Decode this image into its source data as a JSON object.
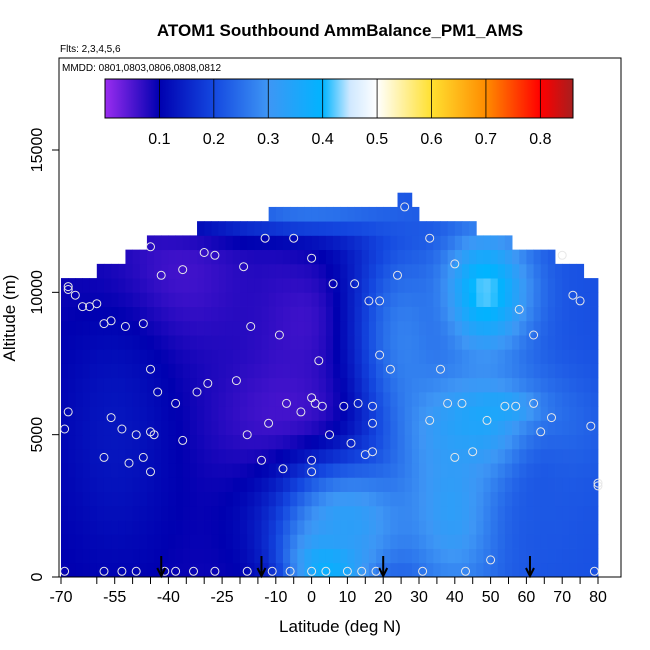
{
  "chart_data": {
    "type": "heatmap",
    "title": "ATOM1 Southbound AmmBalance_PM1_AMS",
    "subtitle_flights": "Flts: 2,3,4,5,6",
    "subtitle_dates": "MMDD: 0801,0803,0806,0808,0812",
    "xlabel": "Latitude (deg N)",
    "ylabel": "Altitude (m)",
    "xlim": [
      -70,
      82
    ],
    "ylim": [
      0,
      17500
    ],
    "x_ticks": [
      -70,
      -55,
      -40,
      -25,
      -10,
      0,
      10,
      20,
      30,
      40,
      50,
      60,
      70,
      80
    ],
    "x_tick_labels": [
      "-70",
      "-55",
      "-40",
      "-25",
      "-10",
      "0",
      "10",
      "20",
      "30",
      "40",
      "50",
      "60",
      "70",
      "80"
    ],
    "x_minor_ticks": [
      -60,
      -50,
      -45,
      -35,
      -30,
      -20,
      -15,
      -5,
      5,
      15,
      25,
      35,
      45,
      55,
      65,
      75
    ],
    "y_ticks": [
      0,
      5000,
      10000,
      15000
    ],
    "y_tick_labels": [
      "0",
      "5000",
      "10000",
      "15000"
    ],
    "colorbar": {
      "range": [
        0.0,
        0.86
      ],
      "ticks": [
        0.1,
        0.2,
        0.3,
        0.4,
        0.5,
        0.6,
        0.7,
        0.8
      ],
      "tick_labels": [
        "0.1",
        "0.2",
        "0.3",
        "0.4",
        "0.5",
        "0.6",
        "0.7",
        "0.8"
      ],
      "stops": [
        {
          "v": 0.0,
          "color": "#9a2cf0"
        },
        {
          "v": 0.1,
          "color": "#0000b0"
        },
        {
          "v": 0.2,
          "color": "#1448e0"
        },
        {
          "v": 0.3,
          "color": "#3e96f5"
        },
        {
          "v": 0.4,
          "color": "#00b4ff"
        },
        {
          "v": 0.45,
          "color": "#cfe8ff"
        },
        {
          "v": 0.5,
          "color": "#ffffff"
        },
        {
          "v": 0.6,
          "color": "#ffe030"
        },
        {
          "v": 0.7,
          "color": "#ff8c00"
        },
        {
          "v": 0.8,
          "color": "#ff0000"
        },
        {
          "v": 0.86,
          "color": "#a81e1e"
        }
      ]
    },
    "coverage": [
      {
        "y": [
          0,
          10500
        ],
        "x": [
          -69,
          79
        ]
      },
      {
        "y": [
          10500,
          11000
        ],
        "x": [
          -60,
          75
        ]
      },
      {
        "y": [
          11000,
          11500
        ],
        "x": [
          -52,
          68
        ]
      },
      {
        "y": [
          11500,
          12000
        ],
        "x": [
          -45,
          55
        ]
      },
      {
        "y": [
          12000,
          12500
        ],
        "x": [
          -32,
          45
        ]
      },
      {
        "y": [
          12500,
          13000
        ],
        "x": [
          -12,
          30
        ]
      },
      {
        "y": [
          13000,
          13500
        ],
        "x": [
          25,
          27
        ]
      }
    ],
    "field_features": [
      {
        "x": -40,
        "y": 10500,
        "v": 0.05,
        "sx": 14,
        "sy": 1800
      },
      {
        "x": -2,
        "y": 9000,
        "v": 0.06,
        "sx": 10,
        "sy": 1800
      },
      {
        "x": -5,
        "y": 5600,
        "v": 0.05,
        "sx": 16,
        "sy": 1500
      },
      {
        "x": -55,
        "y": 5000,
        "v": 0.13,
        "sx": 12,
        "sy": 3500
      },
      {
        "x": 48,
        "y": 10000,
        "v": 0.43,
        "sx": 9,
        "sy": 1500
      },
      {
        "x": 26,
        "y": 8500,
        "v": 0.27,
        "sx": 9,
        "sy": 2500
      },
      {
        "x": 55,
        "y": 5800,
        "v": 0.53,
        "sx": 5,
        "sy": 350
      },
      {
        "x": 50,
        "y": 5200,
        "v": 0.4,
        "sx": 14,
        "sy": 1300
      },
      {
        "x": 5,
        "y": 500,
        "v": 0.44,
        "sx": 8,
        "sy": 900
      },
      {
        "x": 10,
        "y": 2000,
        "v": 0.33,
        "sx": 14,
        "sy": 1500
      },
      {
        "x": 0,
        "y": 12900,
        "v": 0.26,
        "sx": 25,
        "sy": 600
      },
      {
        "x": 40,
        "y": 2500,
        "v": 0.33,
        "sx": 10,
        "sy": 2500
      },
      {
        "x": 65,
        "y": 3000,
        "v": 0.22,
        "sx": 10,
        "sy": 2500
      }
    ],
    "observations": [
      {
        "x": -69,
        "y": 200
      },
      {
        "x": -58,
        "y": 200
      },
      {
        "x": -53,
        "y": 200
      },
      {
        "x": -49,
        "y": 200
      },
      {
        "x": -41,
        "y": 200
      },
      {
        "x": -38,
        "y": 200
      },
      {
        "x": -33,
        "y": 200
      },
      {
        "x": -27,
        "y": 200
      },
      {
        "x": -18,
        "y": 200
      },
      {
        "x": -11,
        "y": 200
      },
      {
        "x": -6,
        "y": 200
      },
      {
        "x": 0,
        "y": 200
      },
      {
        "x": 4,
        "y": 200
      },
      {
        "x": 10,
        "y": 200
      },
      {
        "x": 14,
        "y": 200
      },
      {
        "x": 18,
        "y": 200
      },
      {
        "x": 31,
        "y": 200
      },
      {
        "x": 43,
        "y": 200
      },
      {
        "x": 50,
        "y": 600
      },
      {
        "x": 79,
        "y": 200
      },
      {
        "x": -58,
        "y": 4200
      },
      {
        "x": -56,
        "y": 5600
      },
      {
        "x": -53,
        "y": 5200
      },
      {
        "x": -51,
        "y": 4000
      },
      {
        "x": -49,
        "y": 5000
      },
      {
        "x": -47,
        "y": 4200
      },
      {
        "x": -45,
        "y": 3700
      },
      {
        "x": -45,
        "y": 5100
      },
      {
        "x": -44,
        "y": 5000
      },
      {
        "x": -43,
        "y": 6500
      },
      {
        "x": -45,
        "y": 7300
      },
      {
        "x": -38,
        "y": 6100
      },
      {
        "x": -36,
        "y": 4800
      },
      {
        "x": -32,
        "y": 6500
      },
      {
        "x": -29,
        "y": 6800
      },
      {
        "x": -21,
        "y": 6900
      },
      {
        "x": -18,
        "y": 5000
      },
      {
        "x": -14,
        "y": 4100
      },
      {
        "x": -12,
        "y": 5400
      },
      {
        "x": -8,
        "y": 3800
      },
      {
        "x": -7,
        "y": 6100
      },
      {
        "x": -3,
        "y": 5800
      },
      {
        "x": 0,
        "y": 6300
      },
      {
        "x": 1,
        "y": 6100
      },
      {
        "x": 0,
        "y": 4100
      },
      {
        "x": 0,
        "y": 3700
      },
      {
        "x": 2,
        "y": 7600
      },
      {
        "x": 3,
        "y": 6000
      },
      {
        "x": 5,
        "y": 5000
      },
      {
        "x": 9,
        "y": 6000
      },
      {
        "x": 11,
        "y": 4700
      },
      {
        "x": 13,
        "y": 6100
      },
      {
        "x": 15,
        "y": 4300
      },
      {
        "x": 17,
        "y": 4400
      },
      {
        "x": 17,
        "y": 5400
      },
      {
        "x": 17,
        "y": 6000
      },
      {
        "x": 19,
        "y": 7800
      },
      {
        "x": 22,
        "y": 7300
      },
      {
        "x": 33,
        "y": 5500
      },
      {
        "x": 36,
        "y": 7300
      },
      {
        "x": 38,
        "y": 6100
      },
      {
        "x": 42,
        "y": 6100
      },
      {
        "x": 40,
        "y": 4200
      },
      {
        "x": 45,
        "y": 4400
      },
      {
        "x": 49,
        "y": 5500
      },
      {
        "x": 54,
        "y": 6000
      },
      {
        "x": 57,
        "y": 6000
      },
      {
        "x": 62,
        "y": 6100
      },
      {
        "x": 64,
        "y": 5100
      },
      {
        "x": 67,
        "y": 5600
      },
      {
        "x": 80,
        "y": 3300
      },
      {
        "x": 80,
        "y": 3200
      },
      {
        "x": 78,
        "y": 5300
      },
      {
        "x": -68,
        "y": 5800
      },
      {
        "x": -69,
        "y": 5200
      },
      {
        "x": -68,
        "y": 10100
      },
      {
        "x": -68,
        "y": 10200
      },
      {
        "x": -66,
        "y": 9900
      },
      {
        "x": -64,
        "y": 9500
      },
      {
        "x": -62,
        "y": 9500
      },
      {
        "x": -60,
        "y": 9600
      },
      {
        "x": -58,
        "y": 8900
      },
      {
        "x": -56,
        "y": 9000
      },
      {
        "x": -52,
        "y": 8800
      },
      {
        "x": -47,
        "y": 8900
      },
      {
        "x": -45,
        "y": 11600
      },
      {
        "x": -42,
        "y": 10600
      },
      {
        "x": -36,
        "y": 10800
      },
      {
        "x": -30,
        "y": 11400
      },
      {
        "x": -27,
        "y": 11300
      },
      {
        "x": -19,
        "y": 10900
      },
      {
        "x": -17,
        "y": 8800
      },
      {
        "x": -13,
        "y": 11900
      },
      {
        "x": -9,
        "y": 8500
      },
      {
        "x": -5,
        "y": 11900
      },
      {
        "x": 0,
        "y": 11200
      },
      {
        "x": 6,
        "y": 10300
      },
      {
        "x": 12,
        "y": 10300
      },
      {
        "x": 16,
        "y": 9700
      },
      {
        "x": 19,
        "y": 9700
      },
      {
        "x": 24,
        "y": 10600
      },
      {
        "x": 33,
        "y": 11900
      },
      {
        "x": 40,
        "y": 11000
      },
      {
        "x": 58,
        "y": 9400
      },
      {
        "x": 62,
        "y": 8500
      },
      {
        "x": 70,
        "y": 11300
      },
      {
        "x": 73,
        "y": 9900
      },
      {
        "x": 75,
        "y": 9700
      },
      {
        "x": 26,
        "y": 13000
      }
    ],
    "marker_arrows": [
      -42,
      -14,
      20,
      61
    ]
  }
}
